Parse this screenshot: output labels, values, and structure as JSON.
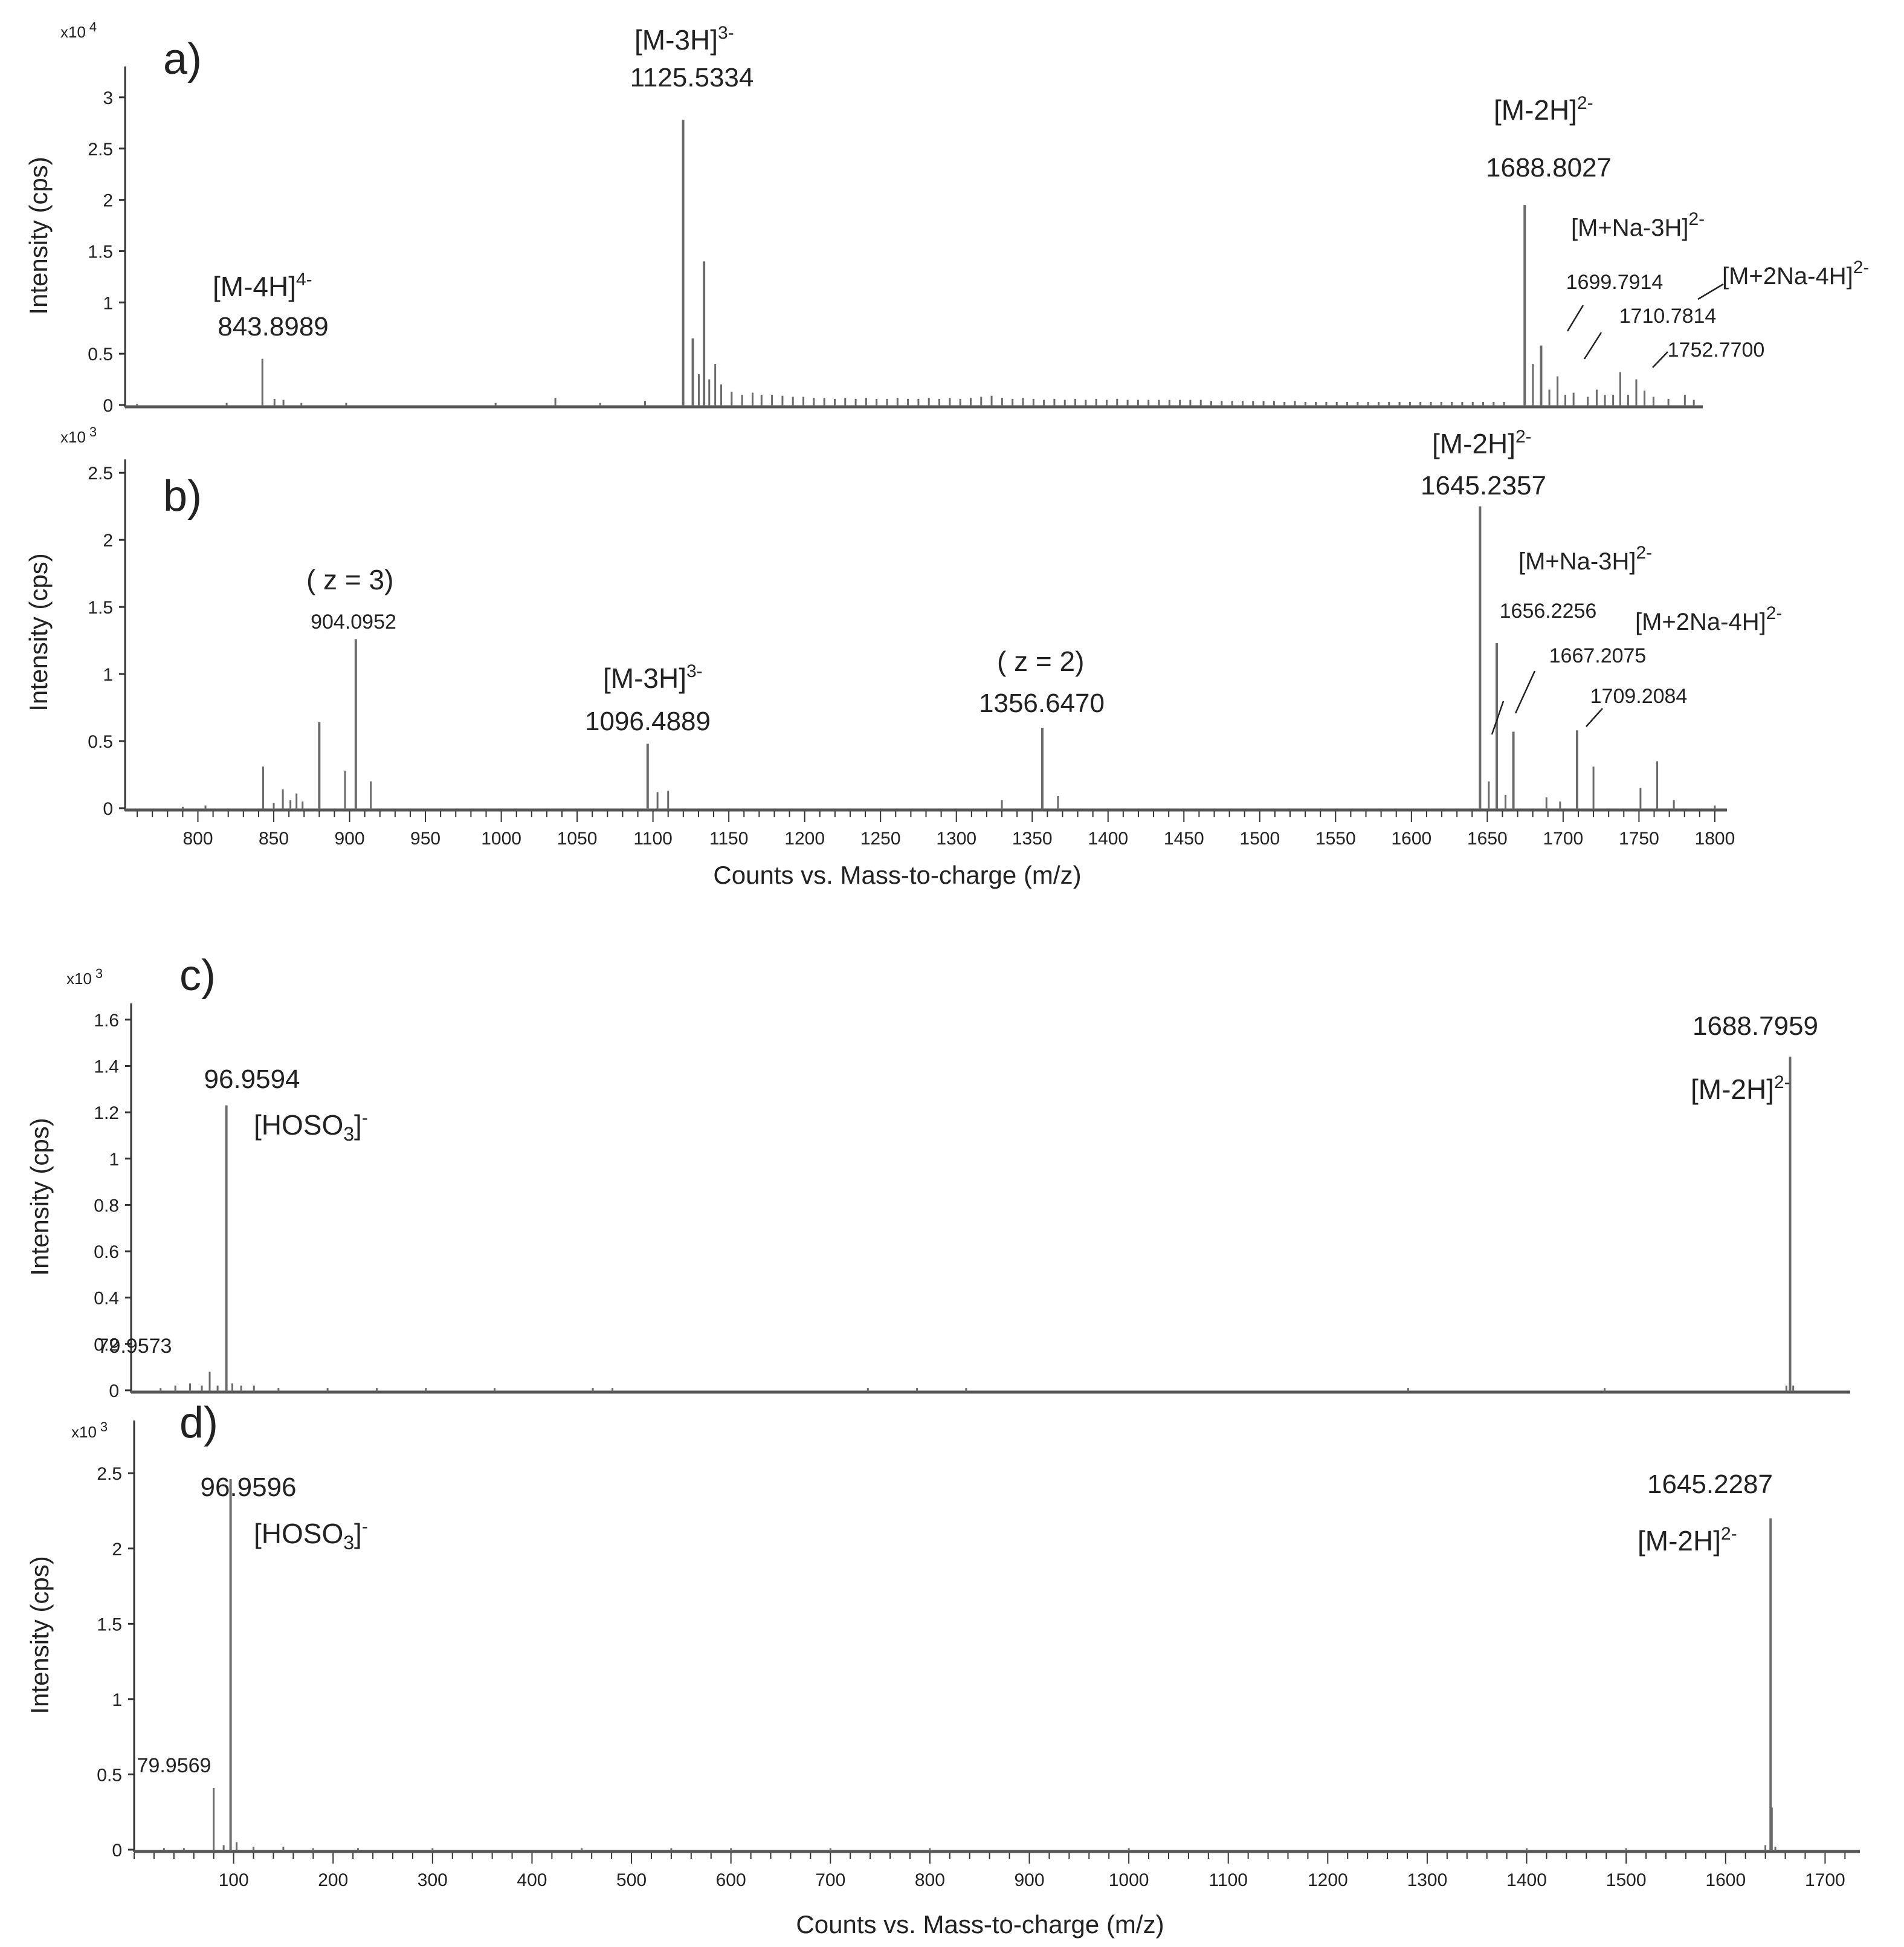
{
  "chart_data": [
    {
      "type": "mass-spectrum",
      "panel_label": "a)",
      "ylabel": "Intensity (cps)",
      "y_multiplier": "x10 4",
      "ylim": [
        0,
        3.3
      ],
      "xlim": [
        752,
        1808
      ],
      "y_ticks": [
        0,
        0.5,
        1,
        1.5,
        2,
        2.5,
        3
      ],
      "y_tick_labels": [
        "0",
        "0.5",
        "1",
        "1.5",
        "2",
        "2.5",
        "3"
      ],
      "x_ticks": [],
      "x_tick_labels": [],
      "xlabel": "",
      "peaks": [
        [
          760,
          0.01
        ],
        [
          820,
          0.02
        ],
        [
          843.9,
          0.45
        ],
        [
          852,
          0.06
        ],
        [
          858,
          0.05
        ],
        [
          870,
          0.02
        ],
        [
          900,
          0.02
        ],
        [
          1000,
          0.02
        ],
        [
          1040,
          0.07
        ],
        [
          1070,
          0.02
        ],
        [
          1100,
          0.04
        ],
        [
          1125.53,
          2.78
        ],
        [
          1132,
          0.65
        ],
        [
          1136,
          0.3
        ],
        [
          1139.5,
          1.4
        ],
        [
          1143,
          0.25
        ],
        [
          1147,
          0.4
        ],
        [
          1151,
          0.2
        ],
        [
          1158,
          0.13
        ],
        [
          1165,
          0.1
        ],
        [
          1172,
          0.12
        ],
        [
          1178,
          0.1
        ],
        [
          1185,
          0.1
        ],
        [
          1192,
          0.09
        ],
        [
          1199,
          0.08
        ],
        [
          1206,
          0.08
        ],
        [
          1213,
          0.07
        ],
        [
          1220,
          0.07
        ],
        [
          1227,
          0.06
        ],
        [
          1234,
          0.07
        ],
        [
          1241,
          0.06
        ],
        [
          1248,
          0.07
        ],
        [
          1255,
          0.06
        ],
        [
          1262,
          0.06
        ],
        [
          1269,
          0.07
        ],
        [
          1276,
          0.06
        ],
        [
          1283,
          0.06
        ],
        [
          1290,
          0.07
        ],
        [
          1297,
          0.06
        ],
        [
          1304,
          0.07
        ],
        [
          1311,
          0.06
        ],
        [
          1318,
          0.07
        ],
        [
          1325,
          0.08
        ],
        [
          1332,
          0.09
        ],
        [
          1339,
          0.07
        ],
        [
          1346,
          0.06
        ],
        [
          1353,
          0.07
        ],
        [
          1360,
          0.06
        ],
        [
          1367,
          0.05
        ],
        [
          1374,
          0.06
        ],
        [
          1381,
          0.05
        ],
        [
          1388,
          0.06
        ],
        [
          1395,
          0.05
        ],
        [
          1402,
          0.06
        ],
        [
          1409,
          0.05
        ],
        [
          1416,
          0.06
        ],
        [
          1423,
          0.05
        ],
        [
          1430,
          0.05
        ],
        [
          1437,
          0.05
        ],
        [
          1444,
          0.05
        ],
        [
          1451,
          0.05
        ],
        [
          1458,
          0.05
        ],
        [
          1465,
          0.05
        ],
        [
          1472,
          0.05
        ],
        [
          1479,
          0.04
        ],
        [
          1486,
          0.04
        ],
        [
          1493,
          0.04
        ],
        [
          1500,
          0.04
        ],
        [
          1507,
          0.04
        ],
        [
          1514,
          0.04
        ],
        [
          1521,
          0.04
        ],
        [
          1528,
          0.03
        ],
        [
          1535,
          0.04
        ],
        [
          1542,
          0.03
        ],
        [
          1549,
          0.03
        ],
        [
          1556,
          0.03
        ],
        [
          1563,
          0.03
        ],
        [
          1570,
          0.03
        ],
        [
          1577,
          0.03
        ],
        [
          1584,
          0.03
        ],
        [
          1591,
          0.03
        ],
        [
          1598,
          0.03
        ],
        [
          1605,
          0.03
        ],
        [
          1612,
          0.03
        ],
        [
          1619,
          0.03
        ],
        [
          1626,
          0.03
        ],
        [
          1633,
          0.03
        ],
        [
          1640,
          0.03
        ],
        [
          1647,
          0.03
        ],
        [
          1654,
          0.03
        ],
        [
          1661,
          0.03
        ],
        [
          1668,
          0.03
        ],
        [
          1675,
          0.03
        ],
        [
          1688.8,
          1.95
        ],
        [
          1694.3,
          0.4
        ],
        [
          1699.79,
          0.58
        ],
        [
          1705.3,
          0.15
        ],
        [
          1710.78,
          0.28
        ],
        [
          1716,
          0.1
        ],
        [
          1721.5,
          0.12
        ],
        [
          1731,
          0.08
        ],
        [
          1737,
          0.15
        ],
        [
          1742.5,
          0.1
        ],
        [
          1748,
          0.1
        ],
        [
          1752.77,
          0.32
        ],
        [
          1758,
          0.1
        ],
        [
          1763.5,
          0.25
        ],
        [
          1769,
          0.14
        ],
        [
          1775,
          0.08
        ],
        [
          1785,
          0.06
        ],
        [
          1796,
          0.1
        ],
        [
          1802,
          0.05
        ]
      ],
      "annotations": [
        {
          "label": "[M-4H]",
          "charge": "4-",
          "mz": "843.8989"
        },
        {
          "label": "[M-3H]",
          "charge": "3-",
          "mz": "1125.5334"
        },
        {
          "label": "[M-2H]",
          "charge": "2-",
          "mz": "1688.8027"
        },
        {
          "label": "[M+Na-3H]",
          "charge": "2-",
          "mz": "1699.7914"
        },
        {
          "label": "[M+2Na-4H]",
          "charge": "2-",
          "mz": "1710.7814"
        },
        {
          "label": "",
          "charge": "",
          "mz": "1752.7700"
        }
      ]
    },
    {
      "type": "mass-spectrum",
      "panel_label": "b)",
      "ylabel": "Intensity (cps)",
      "y_multiplier": "x10 3",
      "ylim": [
        0,
        2.6
      ],
      "xlim": [
        752,
        1808
      ],
      "y_ticks": [
        0,
        0.5,
        1,
        1.5,
        2,
        2.5
      ],
      "y_tick_labels": [
        "0",
        "0.5",
        "1",
        "1.5",
        "2",
        "2.5"
      ],
      "x_ticks": [
        800,
        850,
        900,
        950,
        1000,
        1050,
        1100,
        1150,
        1200,
        1250,
        1300,
        1350,
        1400,
        1450,
        1500,
        1550,
        1600,
        1650,
        1700,
        1750,
        1800
      ],
      "x_tick_labels": [
        "800",
        "850",
        "900",
        "950",
        "1000",
        "1050",
        "1100",
        "1150",
        "1200",
        "1250",
        "1300",
        "1350",
        "1400",
        "1450",
        "1500",
        "1550",
        "1600",
        "1650",
        "1700",
        "1750",
        "1800"
      ],
      "xlabel": "Counts vs. Mass-to-charge (m/z)",
      "peaks": [
        [
          790,
          0.01
        ],
        [
          805,
          0.02
        ],
        [
          843,
          0.31
        ],
        [
          850,
          0.04
        ],
        [
          856,
          0.14
        ],
        [
          861,
          0.06
        ],
        [
          865,
          0.11
        ],
        [
          869,
          0.05
        ],
        [
          880,
          0.64
        ],
        [
          897,
          0.28
        ],
        [
          904.1,
          1.26
        ],
        [
          914,
          0.2
        ],
        [
          1096.49,
          0.48
        ],
        [
          1103,
          0.12
        ],
        [
          1110,
          0.13
        ],
        [
          1330,
          0.06
        ],
        [
          1356.65,
          0.6
        ],
        [
          1367,
          0.09
        ],
        [
          1645.24,
          2.25
        ],
        [
          1651,
          0.2
        ],
        [
          1656.23,
          1.23
        ],
        [
          1662,
          0.1
        ],
        [
          1667.21,
          0.57
        ],
        [
          1689,
          0.08
        ],
        [
          1698,
          0.05
        ],
        [
          1709.21,
          0.58
        ],
        [
          1720,
          0.31
        ],
        [
          1751,
          0.15
        ],
        [
          1762,
          0.35
        ],
        [
          1773,
          0.06
        ],
        [
          1800,
          0.02
        ]
      ],
      "annotations": [
        {
          "label": "( z = 3)",
          "charge": "",
          "mz": "904.0952"
        },
        {
          "label": "[M-3H]",
          "charge": "3-",
          "mz": "1096.4889"
        },
        {
          "label": "( z = 2)",
          "charge": "",
          "mz": "1356.6470"
        },
        {
          "label": "[M-2H]",
          "charge": "2-",
          "mz": "1645.2357"
        },
        {
          "label": "[M+Na-3H]",
          "charge": "2-",
          "mz": "1656.2256"
        },
        {
          "label": "[M+2Na-4H]",
          "charge": "2-",
          "mz": "1667.2075"
        },
        {
          "label": "",
          "charge": "",
          "mz": "1709.2084"
        }
      ]
    },
    {
      "type": "mass-spectrum",
      "panel_label": "c)",
      "ylabel": "Intensity (cps)",
      "y_multiplier": "x10 3",
      "ylim": [
        0,
        1.67
      ],
      "xlim": [
        0,
        1750
      ],
      "y_ticks": [
        0,
        0.2,
        0.4,
        0.6,
        0.8,
        1,
        1.2,
        1.4,
        1.6
      ],
      "y_tick_labels": [
        "0",
        "0.2",
        "0.4",
        "0.6",
        "0.8",
        "1",
        "1.2",
        "1.4",
        "1.6"
      ],
      "x_ticks": [],
      "x_tick_labels": [],
      "xlabel": "",
      "peaks": [
        [
          30,
          0.01
        ],
        [
          45,
          0.02
        ],
        [
          60,
          0.03
        ],
        [
          72,
          0.02
        ],
        [
          79.96,
          0.08
        ],
        [
          88,
          0.02
        ],
        [
          96.96,
          1.23
        ],
        [
          103,
          0.03
        ],
        [
          112,
          0.02
        ],
        [
          125,
          0.02
        ],
        [
          150,
          0.01
        ],
        [
          200,
          0.01
        ],
        [
          250,
          0.01
        ],
        [
          300,
          0.01
        ],
        [
          370,
          0.01
        ],
        [
          470,
          0.01
        ],
        [
          490,
          0.01
        ],
        [
          750,
          0.01
        ],
        [
          800,
          0.01
        ],
        [
          850,
          0.01
        ],
        [
          1300,
          0.01
        ],
        [
          1500,
          0.01
        ],
        [
          1685,
          0.02
        ],
        [
          1688.8,
          1.44
        ],
        [
          1692,
          0.02
        ]
      ],
      "annotations": [
        {
          "label": "",
          "charge": "",
          "mz": "79.9573"
        },
        {
          "label": "[HOSO3]",
          "charge": "-",
          "mz": "96.9594"
        },
        {
          "label": "[M-2H]",
          "charge": "2-",
          "mz": "1688.7959"
        }
      ]
    },
    {
      "type": "mass-spectrum",
      "panel_label": "d)",
      "ylabel": "Intensity (cps)",
      "y_multiplier": "x10 3",
      "ylim": [
        0,
        2.85
      ],
      "xlim": [
        0,
        1735
      ],
      "y_ticks": [
        0,
        0.5,
        1,
        1.5,
        2,
        2.5
      ],
      "y_tick_labels": [
        "0",
        "0.5",
        "1",
        "1.5",
        "2",
        "2.5"
      ],
      "x_ticks": [
        100,
        200,
        300,
        400,
        500,
        600,
        700,
        800,
        900,
        1000,
        1100,
        1200,
        1300,
        1400,
        1500,
        1600,
        1700
      ],
      "x_tick_labels": [
        "100",
        "200",
        "300",
        "400",
        "500",
        "600",
        "700",
        "800",
        "900",
        "1000",
        "1100",
        "1200",
        "1300",
        "1400",
        "1500",
        "1600",
        "1700"
      ],
      "xlabel": "Counts vs. Mass-to-charge (m/z)",
      "peaks": [
        [
          30,
          0.01
        ],
        [
          50,
          0.01
        ],
        [
          79.96,
          0.41
        ],
        [
          90,
          0.03
        ],
        [
          96.96,
          2.46
        ],
        [
          103,
          0.05
        ],
        [
          120,
          0.02
        ],
        [
          150,
          0.02
        ],
        [
          180,
          0.01
        ],
        [
          225,
          0.01
        ],
        [
          300,
          0.01
        ],
        [
          450,
          0.01
        ],
        [
          540,
          0.01
        ],
        [
          600,
          0.01
        ],
        [
          700,
          0.01
        ],
        [
          800,
          0.01
        ],
        [
          1000,
          0.01
        ],
        [
          1400,
          0.01
        ],
        [
          1500,
          0.01
        ],
        [
          1640,
          0.03
        ],
        [
          1645.23,
          2.2
        ],
        [
          1646.5,
          0.28
        ],
        [
          1650,
          0.02
        ]
      ],
      "annotations": [
        {
          "label": "",
          "charge": "",
          "mz": "79.9569"
        },
        {
          "label": "[HOSO3]",
          "charge": "-",
          "mz": "96.9596"
        },
        {
          "label": "[M-2H]",
          "charge": "2-",
          "mz": "1645.2287"
        }
      ]
    }
  ]
}
